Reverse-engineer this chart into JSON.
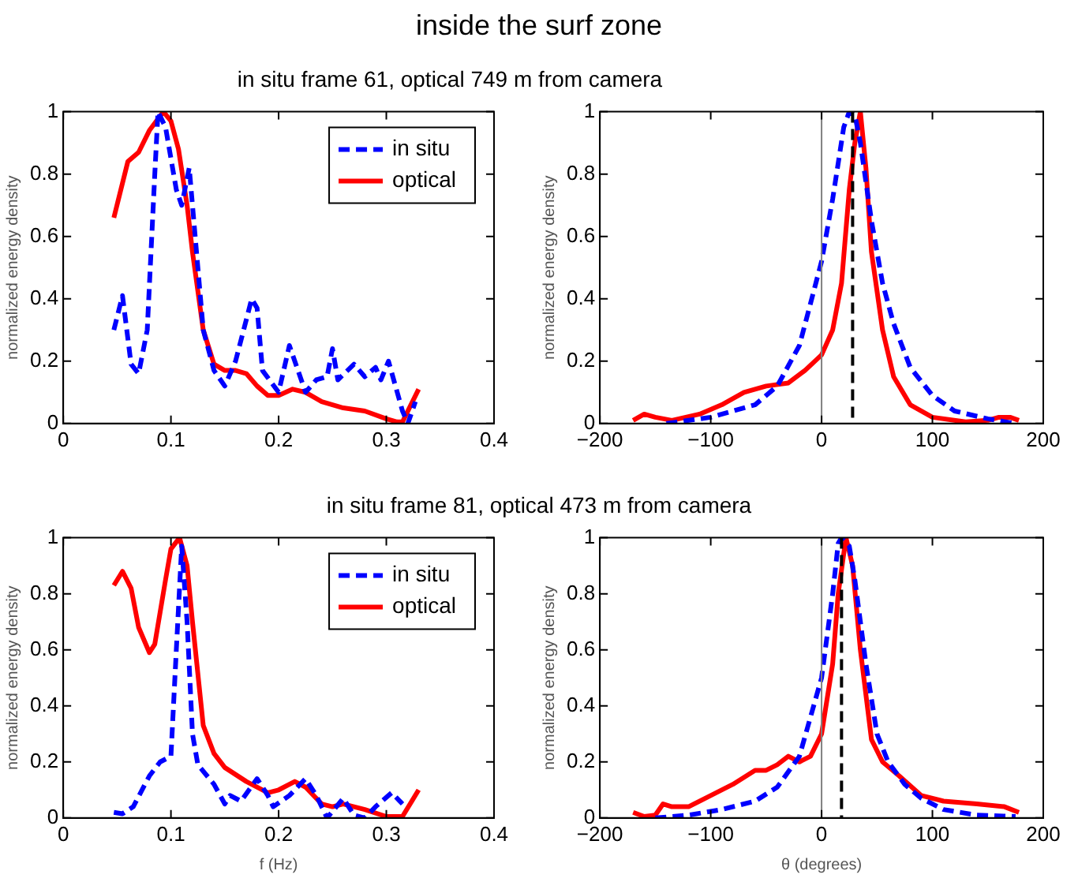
{
  "chart_data": [
    {
      "type": "line",
      "title": "inside the surf zone",
      "subtitle": "in situ frame 61, optical 749 m from camera",
      "ylabel": "normalized energy density",
      "xlim": [
        0,
        0.4
      ],
      "xticks": [
        0,
        0.1,
        0.2,
        0.3,
        0.4
      ],
      "ylim": [
        0,
        1
      ],
      "yticks": [
        0,
        0.2,
        0.4,
        0.6,
        0.8,
        1
      ],
      "grid": false,
      "legend": "top right",
      "marker": "none",
      "series": [
        {
          "name": "in situ",
          "color": "#0000ff",
          "line_style": "dashed",
          "x": [
            0.047,
            0.055,
            0.063,
            0.07,
            0.078,
            0.085,
            0.088,
            0.095,
            0.105,
            0.11,
            0.117,
            0.12,
            0.13,
            0.14,
            0.15,
            0.16,
            0.175,
            0.18,
            0.185,
            0.2,
            0.21,
            0.225,
            0.235,
            0.245,
            0.25,
            0.255,
            0.27,
            0.28,
            0.29,
            0.295,
            0.302,
            0.315,
            0.32,
            0.327
          ],
          "values": [
            0.3,
            0.41,
            0.19,
            0.16,
            0.3,
            0.8,
            1.0,
            0.95,
            0.75,
            0.7,
            0.82,
            0.7,
            0.3,
            0.17,
            0.12,
            0.2,
            0.4,
            0.37,
            0.17,
            0.1,
            0.25,
            0.1,
            0.14,
            0.15,
            0.24,
            0.14,
            0.19,
            0.15,
            0.18,
            0.14,
            0.2,
            0.04,
            0,
            0.07
          ]
        },
        {
          "name": "optical",
          "color": "#ff0000",
          "line_style": "solid",
          "x": [
            0.047,
            0.06,
            0.07,
            0.08,
            0.093,
            0.1,
            0.107,
            0.115,
            0.12,
            0.13,
            0.14,
            0.15,
            0.16,
            0.17,
            0.18,
            0.19,
            0.2,
            0.213,
            0.225,
            0.24,
            0.26,
            0.28,
            0.3,
            0.31,
            0.315,
            0.33
          ],
          "values": [
            0.66,
            0.84,
            0.87,
            0.94,
            1.0,
            0.97,
            0.88,
            0.7,
            0.55,
            0.3,
            0.19,
            0.17,
            0.17,
            0.16,
            0.12,
            0.09,
            0.09,
            0.11,
            0.1,
            0.07,
            0.05,
            0.04,
            0.015,
            0.005,
            0.005,
            0.11
          ]
        }
      ]
    },
    {
      "type": "line",
      "ylabel": "normalized energy density",
      "xlim": [
        -200,
        200
      ],
      "xticks": [
        -200,
        -100,
        0,
        100,
        200
      ],
      "ylim": [
        0,
        1
      ],
      "yticks": [
        0,
        0.2,
        0.4,
        0.6,
        0.8,
        1
      ],
      "grid": false,
      "marker": "none",
      "ref_lines": [
        {
          "axis": "x",
          "value": 0,
          "color": "#808080",
          "line_style": "solid"
        },
        {
          "axis": "x",
          "value": 28,
          "color": "#000000",
          "line_style": "dashed"
        }
      ],
      "series": [
        {
          "color": "#0000ff",
          "line_style": "dashed",
          "x": [
            -140,
            -100,
            -60,
            -40,
            -20,
            0,
            10,
            20,
            25,
            30,
            35,
            45,
            55,
            65,
            80,
            100,
            120,
            150,
            175
          ],
          "values": [
            0,
            0.02,
            0.06,
            0.12,
            0.25,
            0.52,
            0.72,
            0.95,
            1.0,
            0.99,
            0.9,
            0.65,
            0.45,
            0.32,
            0.18,
            0.09,
            0.04,
            0.015,
            0
          ]
        },
        {
          "color": "#ff0000",
          "line_style": "solid",
          "x": [
            -170,
            -160,
            -150,
            -135,
            -110,
            -90,
            -70,
            -50,
            -30,
            -15,
            0,
            10,
            18,
            25,
            30,
            35,
            40,
            45,
            55,
            65,
            80,
            100,
            130,
            150,
            160,
            170,
            178
          ],
          "values": [
            0.01,
            0.03,
            0.02,
            0.01,
            0.03,
            0.06,
            0.1,
            0.12,
            0.13,
            0.17,
            0.22,
            0.3,
            0.45,
            0.75,
            0.9,
            1.0,
            0.82,
            0.55,
            0.3,
            0.15,
            0.06,
            0.02,
            0.005,
            0.01,
            0.02,
            0.02,
            0.01
          ]
        }
      ]
    },
    {
      "type": "line",
      "title": "in situ frame 81, optical 473 m from camera",
      "xlabel": "f (Hz)",
      "ylabel": "normalized energy density",
      "xlim": [
        0,
        0.4
      ],
      "xticks": [
        0,
        0.1,
        0.2,
        0.3,
        0.4
      ],
      "ylim": [
        0,
        1
      ],
      "yticks": [
        0,
        0.2,
        0.4,
        0.6,
        0.8,
        1
      ],
      "grid": false,
      "legend": "top right",
      "marker": "none",
      "series": [
        {
          "name": "in situ",
          "color": "#0000ff",
          "line_style": "dashed",
          "x": [
            0.047,
            0.055,
            0.065,
            0.08,
            0.09,
            0.1,
            0.105,
            0.11,
            0.115,
            0.12,
            0.125,
            0.14,
            0.15,
            0.155,
            0.165,
            0.18,
            0.19,
            0.195,
            0.21,
            0.225,
            0.235,
            0.245,
            0.26,
            0.27,
            0.28,
            0.29,
            0.305,
            0.315
          ],
          "values": [
            0.02,
            0.015,
            0.04,
            0.15,
            0.2,
            0.22,
            0.6,
            0.97,
            0.7,
            0.3,
            0.19,
            0.12,
            0.05,
            0.08,
            0.06,
            0.14,
            0.08,
            0.04,
            0.08,
            0.14,
            0.08,
            0,
            0.07,
            0.01,
            0,
            0.04,
            0.09,
            0.05
          ]
        },
        {
          "name": "optical",
          "color": "#ff0000",
          "line_style": "solid",
          "x": [
            0.047,
            0.055,
            0.063,
            0.07,
            0.08,
            0.085,
            0.095,
            0.1,
            0.108,
            0.115,
            0.12,
            0.13,
            0.14,
            0.15,
            0.17,
            0.19,
            0.2,
            0.215,
            0.225,
            0.24,
            0.25,
            0.26,
            0.28,
            0.3,
            0.315,
            0.33
          ],
          "values": [
            0.83,
            0.88,
            0.82,
            0.68,
            0.59,
            0.62,
            0.85,
            0.96,
            1.0,
            0.9,
            0.7,
            0.33,
            0.23,
            0.18,
            0.13,
            0.09,
            0.1,
            0.13,
            0.11,
            0.05,
            0.04,
            0.05,
            0.03,
            0.005,
            0.005,
            0.1
          ]
        }
      ]
    },
    {
      "type": "line",
      "xlabel": "θ (degrees)",
      "ylabel": "normalized energy density",
      "xlim": [
        -200,
        200
      ],
      "xticks": [
        -200,
        -100,
        0,
        100,
        200
      ],
      "ylim": [
        0,
        1
      ],
      "yticks": [
        0,
        0.2,
        0.4,
        0.6,
        0.8,
        1
      ],
      "grid": false,
      "marker": "none",
      "ref_lines": [
        {
          "axis": "x",
          "value": 0,
          "color": "#808080",
          "line_style": "solid"
        },
        {
          "axis": "x",
          "value": 18,
          "color": "#000000",
          "line_style": "dashed"
        }
      ],
      "series": [
        {
          "color": "#0000ff",
          "line_style": "dashed",
          "x": [
            -150,
            -120,
            -90,
            -60,
            -40,
            -20,
            0,
            10,
            15,
            18,
            25,
            30,
            40,
            50,
            60,
            75,
            90,
            110,
            140,
            175
          ],
          "values": [
            0,
            0.01,
            0.03,
            0.06,
            0.11,
            0.22,
            0.5,
            0.8,
            0.98,
            1.0,
            0.97,
            0.85,
            0.55,
            0.3,
            0.2,
            0.12,
            0.07,
            0.03,
            0.01,
            0.005
          ]
        },
        {
          "color": "#ff0000",
          "line_style": "solid",
          "x": [
            -170,
            -160,
            -150,
            -143,
            -135,
            -120,
            -100,
            -80,
            -60,
            -50,
            -40,
            -30,
            -20,
            -10,
            0,
            10,
            15,
            22,
            28,
            35,
            45,
            55,
            70,
            90,
            110,
            140,
            165,
            178
          ],
          "values": [
            0.02,
            0.005,
            0.01,
            0.05,
            0.04,
            0.04,
            0.08,
            0.12,
            0.17,
            0.17,
            0.19,
            0.22,
            0.2,
            0.22,
            0.3,
            0.55,
            0.8,
            1.0,
            0.9,
            0.6,
            0.28,
            0.2,
            0.15,
            0.08,
            0.06,
            0.05,
            0.04,
            0.02
          ]
        }
      ]
    }
  ]
}
